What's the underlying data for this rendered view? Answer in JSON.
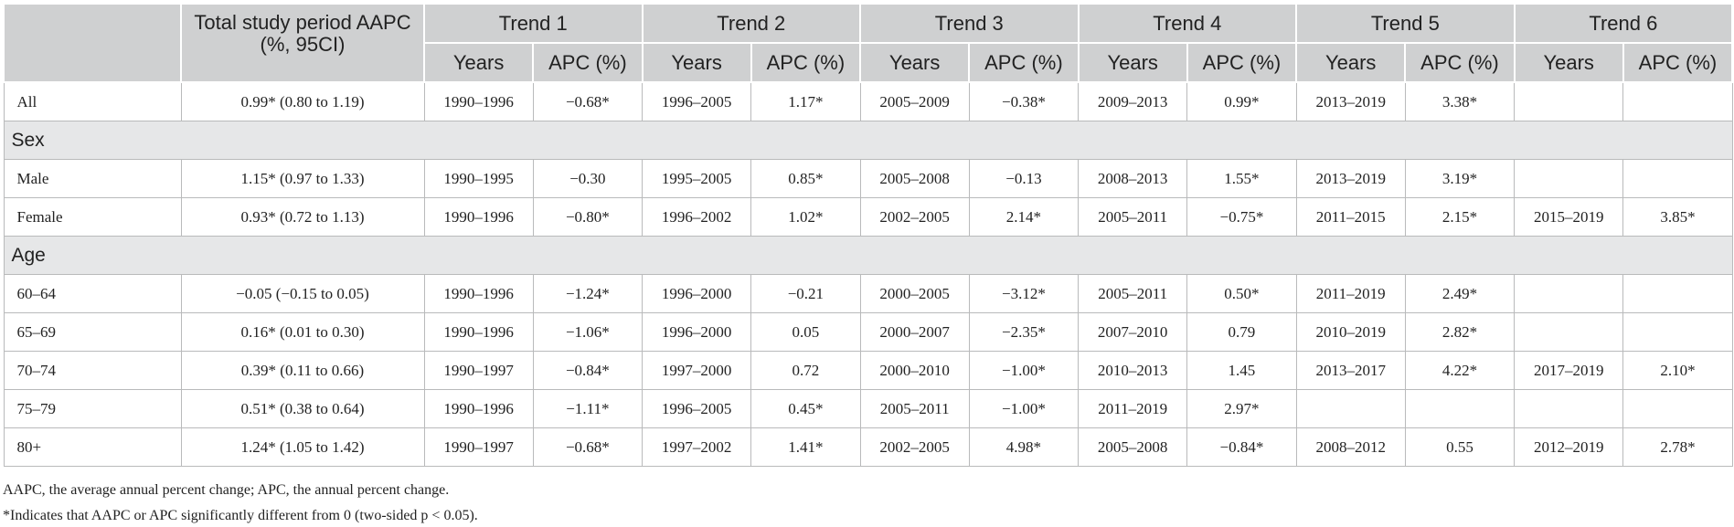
{
  "table": {
    "header": {
      "label": "",
      "columns": [
        "Total study period AAPC (%, 95CI)",
        "Trend 1",
        "Trend 2",
        "Trend 3",
        "Trend 4",
        "Trend 5",
        "Trend 6"
      ],
      "sub": [
        "Years",
        "APC (%)"
      ]
    },
    "rows": [
      {
        "label": "All",
        "aapc": "0.99* (0.80 to 1.19)",
        "trends": [
          [
            "1990–1996",
            "−0.68*"
          ],
          [
            "1996–2005",
            "1.17*"
          ],
          [
            "2005–2009",
            "−0.38*"
          ],
          [
            "2009–2013",
            "0.99*"
          ],
          [
            "2013–2019",
            "3.38*"
          ]
        ]
      },
      {
        "section": "Sex"
      },
      {
        "label": "Male",
        "aapc": "1.15* (0.97 to 1.33)",
        "trends": [
          [
            "1990–1995",
            "−0.30"
          ],
          [
            "1995–2005",
            "0.85*"
          ],
          [
            "2005–2008",
            "−0.13"
          ],
          [
            "2008–2013",
            "1.55*"
          ],
          [
            "2013–2019",
            "3.19*"
          ]
        ]
      },
      {
        "label": "Female",
        "aapc": "0.93* (0.72 to 1.13)",
        "trends": [
          [
            "1990–1996",
            "−0.80*"
          ],
          [
            "1996–2002",
            "1.02*"
          ],
          [
            "2002–2005",
            "2.14*"
          ],
          [
            "2005–2011",
            "−0.75*"
          ],
          [
            "2011–2015",
            "2.15*"
          ],
          [
            "2015–2019",
            "3.85*"
          ]
        ]
      },
      {
        "section": "Age"
      },
      {
        "label": "60–64",
        "aapc": "−0.05 (−0.15 to 0.05)",
        "trends": [
          [
            "1990–1996",
            "−1.24*"
          ],
          [
            "1996–2000",
            "−0.21"
          ],
          [
            "2000–2005",
            "−3.12*"
          ],
          [
            "2005–2011",
            "0.50*"
          ],
          [
            "2011–2019",
            "2.49*"
          ]
        ]
      },
      {
        "label": "65–69",
        "aapc": "0.16* (0.01 to 0.30)",
        "trends": [
          [
            "1990–1996",
            "−1.06*"
          ],
          [
            "1996–2000",
            "0.05"
          ],
          [
            "2000–2007",
            "−2.35*"
          ],
          [
            "2007–2010",
            "0.79"
          ],
          [
            "2010–2019",
            "2.82*"
          ]
        ]
      },
      {
        "label": "70–74",
        "aapc": "0.39* (0.11 to 0.66)",
        "trends": [
          [
            "1990–1997",
            "−0.84*"
          ],
          [
            "1997–2000",
            "0.72"
          ],
          [
            "2000–2010",
            "−1.00*"
          ],
          [
            "2010–2013",
            "1.45"
          ],
          [
            "2013–2017",
            "4.22*"
          ],
          [
            "2017–2019",
            "2.10*"
          ]
        ]
      },
      {
        "label": "75–79",
        "aapc": "0.51* (0.38 to 0.64)",
        "trends": [
          [
            "1990–1996",
            "−1.11*"
          ],
          [
            "1996–2005",
            "0.45*"
          ],
          [
            "2005–2011",
            "−1.00*"
          ],
          [
            "2011–2019",
            "2.97*"
          ]
        ]
      },
      {
        "label": "80+",
        "aapc": "1.24* (1.05 to 1.42)",
        "trends": [
          [
            "1990–1997",
            "−0.68*"
          ],
          [
            "1997–2002",
            "1.41*"
          ],
          [
            "2002–2005",
            "4.98*"
          ],
          [
            "2005–2008",
            "−0.84*"
          ],
          [
            "2008–2012",
            "0.55"
          ],
          [
            "2012–2019",
            "2.78*"
          ]
        ]
      }
    ],
    "footnotes": [
      "AAPC, the average annual percent change; APC, the annual percent change.",
      "*Indicates that AAPC or APC significantly different from 0 (two-sided p < 0.05)."
    ]
  }
}
